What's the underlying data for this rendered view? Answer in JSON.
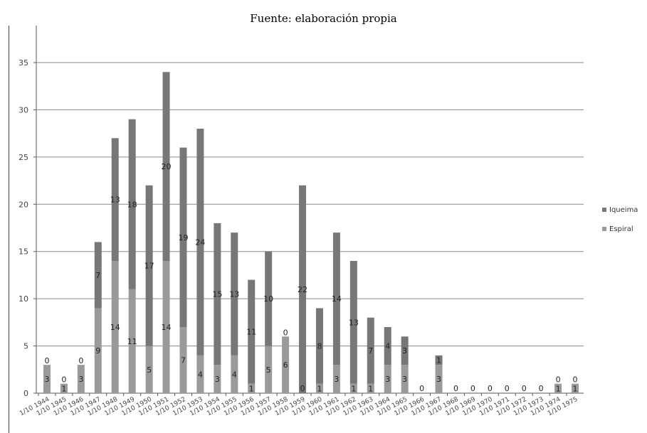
{
  "caption": "Fuente: elaboración propia",
  "chart_data": {
    "type": "bar",
    "stacked": true,
    "categories": [
      "1/10 1944",
      "1/10 1945",
      "1/10 1946",
      "1/10 1947",
      "1/10 1948",
      "1/10 1949",
      "1/10 1950",
      "1/10 1951",
      "1/10 1952",
      "1/10 1953",
      "1/10 1954",
      "1/10 1955",
      "1/10 1956",
      "1/10 1957",
      "1/10 1958",
      "1/10 1959",
      "1/10 1960",
      "1/10 1961",
      "1/10 1962",
      "1/10 1963",
      "1/10 1964",
      "1/10 1965",
      "1/10 1966",
      "1/10 1967",
      "1/10 1968",
      "1/10 1969",
      "1/10 1970",
      "1/10 1971",
      "1/10 1972",
      "1/10 1973",
      "1/10 1974",
      "1/10 1975"
    ],
    "series": [
      {
        "name": "Espiral",
        "color": "#9a9a9a",
        "values": [
          3,
          1,
          3,
          9,
          14,
          11,
          5,
          14,
          7,
          4,
          3,
          4,
          1,
          5,
          6,
          0,
          1,
          3,
          1,
          1,
          3,
          3,
          0,
          3,
          0,
          0,
          0,
          0,
          0,
          0,
          1,
          1
        ]
      },
      {
        "name": "Iqueima",
        "color": "#777777",
        "values": [
          0,
          0,
          0,
          7,
          13,
          18,
          17,
          20,
          19,
          24,
          15,
          13,
          11,
          10,
          0,
          22,
          8,
          14,
          13,
          7,
          4,
          3,
          0,
          1,
          0,
          0,
          0,
          0,
          0,
          0,
          0,
          0
        ]
      }
    ],
    "segment_labels": {
      "Espiral": [
        "3",
        "1",
        "3",
        "9",
        "14",
        "11",
        "5",
        "14",
        "7",
        "4",
        "3",
        "4",
        "1",
        "5",
        "6",
        "0",
        "1",
        "3",
        "1",
        "1",
        "3",
        "3",
        "0",
        "3",
        "0",
        "0",
        "0",
        "0",
        "0",
        "0",
        "1",
        "1"
      ],
      "Iqueima": [
        "0",
        "0",
        "0",
        "7",
        "13",
        "18",
        "17",
        "20",
        "19",
        "24",
        "15",
        "13",
        "11",
        "10",
        "0",
        "22",
        "8",
        "14",
        "13",
        "7",
        "4",
        "3",
        "0",
        "1",
        "0",
        "0",
        "0",
        "0",
        "0",
        "0",
        "0",
        "0"
      ]
    },
    "yticks": [
      0,
      5,
      10,
      15,
      20,
      25,
      30,
      35
    ],
    "ylim": [
      0,
      35
    ],
    "grid": true,
    "legend": [
      "Iqueima",
      "Espiral"
    ],
    "legend_position": "right",
    "title": "",
    "xlabel": "",
    "ylabel": ""
  }
}
